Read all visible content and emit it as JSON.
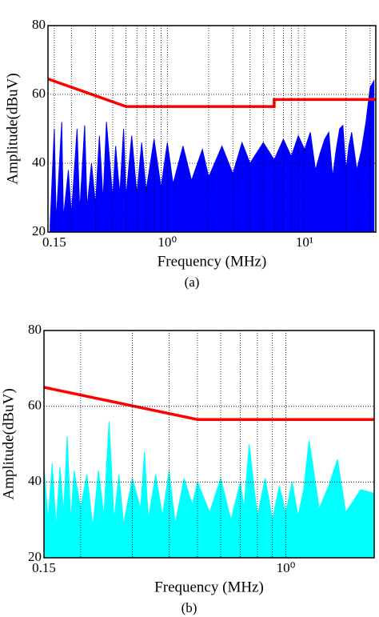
{
  "chart_data": [
    {
      "type": "line",
      "caption": "(a)",
      "xlabel": "Frequency (MHz)",
      "ylabel": "Amplitude(dBuV)",
      "xscale": "log",
      "xlim": [
        0.135,
        33
      ],
      "ylim": [
        20,
        80
      ],
      "xticks": [
        0.15,
        {
          "value": 1,
          "label": "10⁰"
        },
        {
          "value": 10,
          "label": "10¹"
        }
      ],
      "minor_xticks": [
        0.2,
        0.3,
        0.4,
        0.5,
        0.6,
        0.7,
        0.8,
        0.9,
        2,
        3,
        4,
        5,
        6,
        7,
        8,
        9,
        20,
        30
      ],
      "yticks": [
        20,
        40,
        60,
        80
      ],
      "grid": true,
      "series": [
        {
          "color": "#0000ff",
          "fill": true,
          "x": [
            0.14,
            0.15,
            0.155,
            0.17,
            0.175,
            0.19,
            0.2,
            0.22,
            0.23,
            0.25,
            0.26,
            0.28,
            0.3,
            0.32,
            0.34,
            0.36,
            0.4,
            0.42,
            0.45,
            0.48,
            0.5,
            0.55,
            0.6,
            0.65,
            0.7,
            0.8,
            0.9,
            1,
            1.1,
            1.3,
            1.5,
            1.8,
            2,
            2.5,
            3,
            3.5,
            4,
            5,
            6,
            7,
            8,
            9,
            10,
            11,
            12,
            13,
            14,
            15,
            16,
            17,
            18,
            19,
            20,
            21,
            22,
            24,
            26,
            28,
            30,
            32
          ],
          "values": [
            22,
            50,
            23,
            52,
            24,
            38,
            25,
            50,
            26,
            51,
            27,
            40,
            28,
            48,
            29,
            52,
            30,
            45,
            31,
            50,
            30,
            48,
            31,
            46,
            32,
            47,
            33,
            46,
            34,
            45,
            35,
            44,
            36,
            45,
            37,
            46,
            40,
            46,
            41,
            47,
            42,
            48,
            44,
            49,
            38,
            43,
            47,
            49,
            36,
            44,
            50,
            51,
            38,
            45,
            49,
            38,
            44,
            52,
            62,
            64
          ]
        },
        {
          "color": "#ff0000",
          "fill": false,
          "x": [
            0.135,
            0.5,
            6,
            6,
            33
          ],
          "values": [
            64.5,
            56.5,
            56.5,
            58.5,
            58.5
          ]
        }
      ]
    },
    {
      "type": "line",
      "caption": "(b)",
      "xlabel": "Frequency (MHz)",
      "ylabel": "Amplitude(dBuV)",
      "xscale": "log",
      "xlim": [
        0.15,
        2
      ],
      "ylim": [
        20,
        80
      ],
      "xticks": [
        0.15,
        {
          "value": 1,
          "label": "10⁰"
        }
      ],
      "minor_xticks": [
        0.2,
        0.3,
        0.4,
        0.5,
        0.6,
        0.7,
        0.8,
        0.9
      ],
      "yticks": [
        20,
        40,
        60,
        80
      ],
      "grid": true,
      "series": [
        {
          "color": "#00ffff",
          "fill": true,
          "x": [
            0.15,
            0.155,
            0.16,
            0.165,
            0.17,
            0.175,
            0.18,
            0.185,
            0.19,
            0.2,
            0.21,
            0.22,
            0.23,
            0.24,
            0.25,
            0.26,
            0.27,
            0.28,
            0.3,
            0.32,
            0.33,
            0.34,
            0.36,
            0.38,
            0.4,
            0.42,
            0.45,
            0.48,
            0.5,
            0.55,
            0.6,
            0.65,
            0.7,
            0.72,
            0.75,
            0.8,
            0.85,
            0.9,
            0.95,
            1,
            1.05,
            1.1,
            1.15,
            1.2,
            1.3,
            1.4,
            1.5,
            1.6,
            1.8,
            2
          ],
          "values": [
            44,
            30,
            45,
            28,
            44,
            32,
            52,
            30,
            43,
            33,
            42,
            28,
            43,
            31,
            56,
            30,
            42,
            29,
            41,
            33,
            48,
            30,
            42,
            31,
            43,
            29,
            41,
            34,
            40,
            32,
            41,
            30,
            40,
            33,
            50,
            31,
            41,
            30,
            39,
            32,
            40,
            31,
            38,
            51,
            33,
            39,
            46,
            32,
            38,
            37
          ]
        },
        {
          "color": "#ff0000",
          "fill": false,
          "x": [
            0.15,
            0.5,
            2
          ],
          "values": [
            65,
            56.5,
            56.5
          ]
        }
      ]
    }
  ]
}
